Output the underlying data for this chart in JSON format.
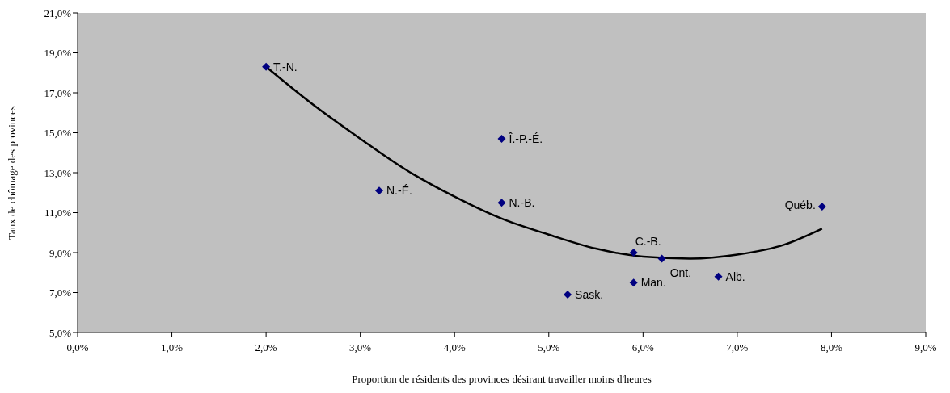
{
  "chart_data": {
    "type": "scatter",
    "xlabel": "Proportion de résidents des provinces désirant travailler moins d'heures",
    "ylabel": "Taux de chômage des provinces",
    "marker": "diamond",
    "series": [
      {
        "color": "#000080",
        "x": [
          2.0,
          3.2,
          4.5,
          4.5,
          5.2,
          5.9,
          5.9,
          6.2,
          6.8,
          7.9
        ],
        "values": [
          18.3,
          12.1,
          14.7,
          11.5,
          6.9,
          7.5,
          9.0,
          8.7,
          7.8,
          11.3
        ]
      },
      {
        "type": "line",
        "color": "#000000",
        "marker": "none",
        "x": [
          2.0,
          2.5,
          3.0,
          3.5,
          4.0,
          4.5,
          5.0,
          5.5,
          6.0,
          6.5,
          7.0,
          7.5,
          7.9
        ],
        "values": [
          18.3,
          16.4,
          14.7,
          13.1,
          11.8,
          10.7,
          9.9,
          9.2,
          8.8,
          8.7,
          8.9,
          9.4,
          10.2
        ]
      }
    ],
    "xlim": [
      0,
      9
    ],
    "xticks": [
      {
        "value": 0,
        "label": "0,0%"
      },
      {
        "value": 1,
        "label": "1,0%"
      },
      {
        "value": 2,
        "label": "2,0%"
      },
      {
        "value": 3,
        "label": "3,0%"
      },
      {
        "value": 4,
        "label": "4,0%"
      },
      {
        "value": 5,
        "label": "5,0%"
      },
      {
        "value": 6,
        "label": "6,0%"
      },
      {
        "value": 7,
        "label": "7,0%"
      },
      {
        "value": 8,
        "label": "8,0%"
      },
      {
        "value": 9,
        "label": "9,0%"
      }
    ],
    "ylim": [
      5,
      21
    ],
    "yticks": [
      {
        "value": 5,
        "label": "5,0%"
      },
      {
        "value": 7,
        "label": "7,0%"
      },
      {
        "value": 9,
        "label": "9,0%"
      },
      {
        "value": 11,
        "label": "11,0%"
      },
      {
        "value": 13,
        "label": "13,0%"
      },
      {
        "value": 15,
        "label": "15,0%"
      },
      {
        "value": 17,
        "label": "17,0%"
      },
      {
        "value": 19,
        "label": "19,0%"
      },
      {
        "value": 21,
        "label": "21,0%"
      }
    ],
    "annotations": [
      {
        "text": "T.-N.",
        "x": 2.0,
        "y": 18.3
      },
      {
        "text": "N.-É.",
        "x": 3.2,
        "y": 12.1
      },
      {
        "text": "Î.-P.-É.",
        "x": 4.5,
        "y": 14.7
      },
      {
        "text": "N.-B.",
        "x": 4.5,
        "y": 11.5
      },
      {
        "text": "Sask.",
        "x": 5.2,
        "y": 6.9
      },
      {
        "text": "Man.",
        "x": 5.9,
        "y": 7.5
      },
      {
        "text": "C.-B.",
        "x": 5.9,
        "y": 9.0
      },
      {
        "text": "Ont.",
        "x": 6.2,
        "y": 8.7
      },
      {
        "text": "Alb.",
        "x": 6.8,
        "y": 7.8
      },
      {
        "text": "Québ.",
        "x": 7.9,
        "y": 11.3
      }
    ]
  }
}
